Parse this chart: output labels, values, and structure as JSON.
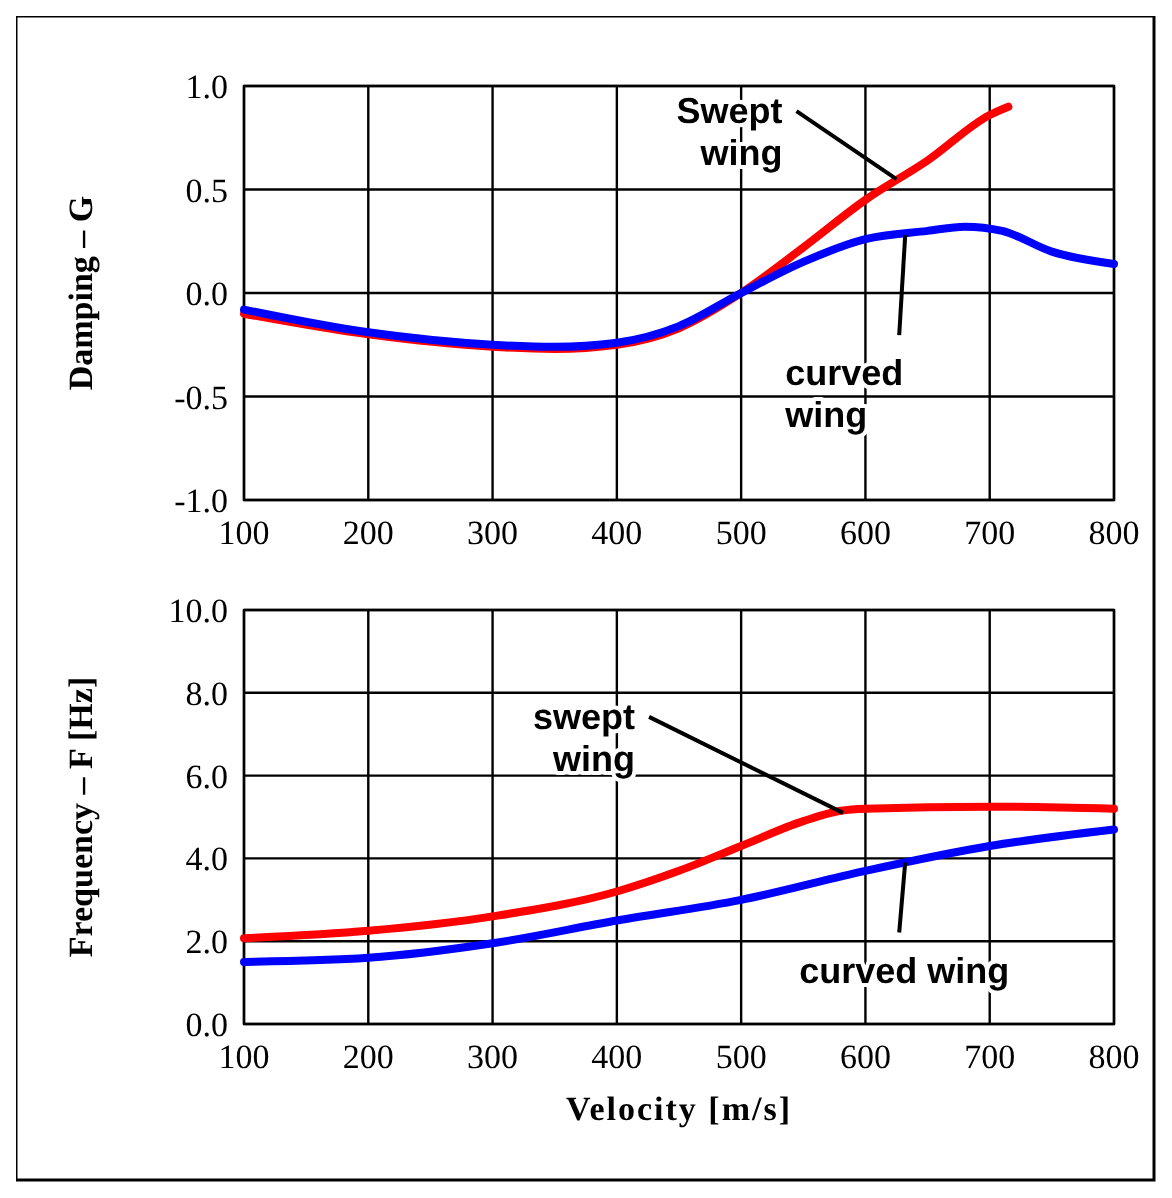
{
  "chart_data": [
    {
      "type": "line",
      "ylabel": "Damping – G",
      "xlim": [
        100,
        800
      ],
      "xticks": [
        100,
        200,
        300,
        400,
        500,
        600,
        700,
        800
      ],
      "ylim": [
        -1,
        1
      ],
      "yticks": [
        {
          "value": -1,
          "label": "-1.0"
        },
        {
          "value": -0.5,
          "label": "-0.5"
        },
        {
          "value": 0,
          "label": "0.0"
        },
        {
          "value": 0.5,
          "label": "0.5"
        },
        {
          "value": 1,
          "label": "1.0"
        }
      ],
      "grid": true,
      "marker": "none",
      "line_style": "solid",
      "series": [
        {
          "color": "#ff0000",
          "x": [
            100,
            200,
            300,
            350,
            400,
            450,
            500,
            550,
            600,
            650,
            700,
            715
          ],
          "values": [
            -0.1,
            -0.2,
            -0.26,
            -0.27,
            -0.25,
            -0.17,
            0,
            0.22,
            0.45,
            0.64,
            0.86,
            0.9
          ]
        },
        {
          "color": "#0000ff",
          "x": [
            100,
            200,
            300,
            350,
            400,
            450,
            500,
            550,
            600,
            650,
            680,
            710,
            750,
            800
          ],
          "values": [
            -0.08,
            -0.19,
            -0.25,
            -0.26,
            -0.24,
            -0.16,
            0,
            0.15,
            0.26,
            0.3,
            0.32,
            0.3,
            0.2,
            0.14
          ]
        }
      ],
      "annotations": [
        {
          "text": "Swept wing",
          "x": 625,
          "y": 0.55
        },
        {
          "text": "curved wing",
          "x": 632,
          "y": 0.28
        }
      ]
    },
    {
      "type": "line",
      "xlabel": "Velocity [m/s]",
      "ylabel": "Frequency – F [Hz]",
      "xlim": [
        100,
        800
      ],
      "xticks": [
        100,
        200,
        300,
        400,
        500,
        600,
        700,
        800
      ],
      "ylim": [
        0,
        10
      ],
      "yticks": [
        {
          "value": 0,
          "label": "0.0"
        },
        {
          "value": 2,
          "label": "2.0"
        },
        {
          "value": 4,
          "label": "4.0"
        },
        {
          "value": 6,
          "label": "6.0"
        },
        {
          "value": 8,
          "label": "8.0"
        },
        {
          "value": 10,
          "label": "10.0"
        }
      ],
      "grid": true,
      "marker": "none",
      "line_style": "solid",
      "series": [
        {
          "color": "#ff0000",
          "x": [
            100,
            200,
            300,
            400,
            450,
            500,
            550,
            580,
            600,
            700,
            800
          ],
          "values": [
            2.07,
            2.25,
            2.6,
            3.2,
            3.7,
            4.3,
            4.9,
            5.15,
            5.2,
            5.25,
            5.2
          ]
        },
        {
          "color": "#0000ff",
          "x": [
            100,
            200,
            300,
            400,
            500,
            600,
            700,
            800
          ],
          "values": [
            1.5,
            1.6,
            1.95,
            2.5,
            3.0,
            3.7,
            4.3,
            4.7
          ]
        }
      ],
      "annotations": [
        {
          "text": "swept wing",
          "x": 582,
          "y": 5.1
        },
        {
          "text": "curved wing",
          "x": 632,
          "y": 3.9
        }
      ]
    }
  ]
}
